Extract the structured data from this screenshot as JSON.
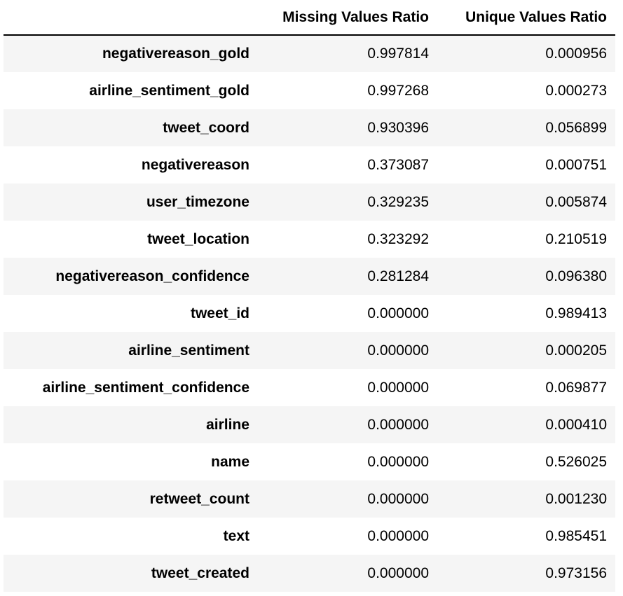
{
  "table": {
    "columns": [
      "Missing Values Ratio",
      "Unique Values Ratio"
    ],
    "rows": [
      {
        "index": "negativereason_gold",
        "missing": "0.997814",
        "unique": "0.000956"
      },
      {
        "index": "airline_sentiment_gold",
        "missing": "0.997268",
        "unique": "0.000273"
      },
      {
        "index": "tweet_coord",
        "missing": "0.930396",
        "unique": "0.056899"
      },
      {
        "index": "negativereason",
        "missing": "0.373087",
        "unique": "0.000751"
      },
      {
        "index": "user_timezone",
        "missing": "0.329235",
        "unique": "0.005874"
      },
      {
        "index": "tweet_location",
        "missing": "0.323292",
        "unique": "0.210519"
      },
      {
        "index": "negativereason_confidence",
        "missing": "0.281284",
        "unique": "0.096380"
      },
      {
        "index": "tweet_id",
        "missing": "0.000000",
        "unique": "0.989413"
      },
      {
        "index": "airline_sentiment",
        "missing": "0.000000",
        "unique": "0.000205"
      },
      {
        "index": "airline_sentiment_confidence",
        "missing": "0.000000",
        "unique": "0.069877"
      },
      {
        "index": "airline",
        "missing": "0.000000",
        "unique": "0.000410"
      },
      {
        "index": "name",
        "missing": "0.000000",
        "unique": "0.526025"
      },
      {
        "index": "retweet_count",
        "missing": "0.000000",
        "unique": "0.001230"
      },
      {
        "index": "text",
        "missing": "0.000000",
        "unique": "0.985451"
      },
      {
        "index": "tweet_created",
        "missing": "0.000000",
        "unique": "0.973156"
      }
    ]
  },
  "colors": {
    "row_stripe": "#f5f5f5",
    "row_plain": "#ffffff",
    "header_rule": "#000000",
    "text": "#000000"
  }
}
